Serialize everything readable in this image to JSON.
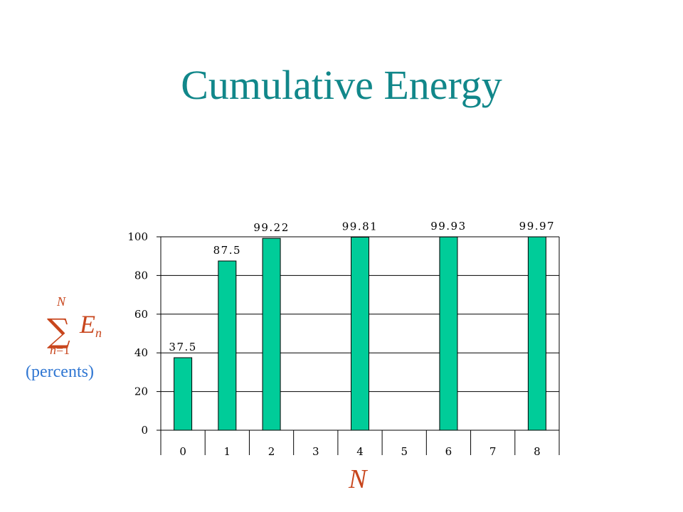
{
  "slide": {
    "title": "Cumulative Energy"
  },
  "formula": {
    "sigma": "∑",
    "upper_limit": "N",
    "lower_var": "n",
    "lower_eq": "=1",
    "term": "E",
    "term_sub": "n",
    "units": "(percents)"
  },
  "chart_data": {
    "type": "bar",
    "categories": [
      "0",
      "1",
      "2",
      "3",
      "4",
      "5",
      "6",
      "7",
      "8"
    ],
    "values": [
      37.5,
      87.5,
      99.22,
      null,
      99.81,
      null,
      99.93,
      null,
      99.97
    ],
    "data_labels": [
      "37.5",
      "87.5",
      "99.22",
      "",
      "99.81",
      "",
      "99.93",
      "",
      "99.97"
    ],
    "xlabel": "N",
    "ylim": [
      0,
      100
    ],
    "yticks": [
      0,
      20,
      40,
      60,
      80,
      100
    ],
    "grid": true,
    "bar_color": "#00cc99",
    "axis_color": "#000000"
  }
}
